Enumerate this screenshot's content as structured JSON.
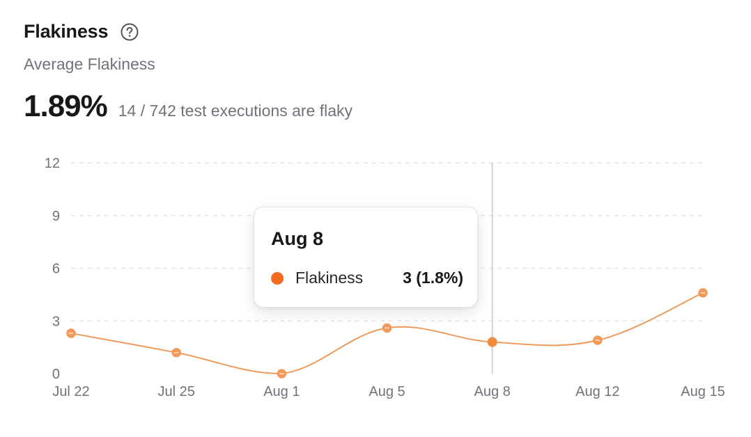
{
  "header": {
    "title": "Flakiness",
    "subtitle": "Average Flakiness",
    "metric_value": "1.89%",
    "metric_description": "14 / 742 test executions are flaky"
  },
  "icons": {
    "help": "question-circle-icon"
  },
  "colors": {
    "series": "#f28a3c",
    "series_line": "#ee9a5a",
    "tooltip_dot": "#f26b21",
    "grid": "#e4e4e7",
    "crosshair": "#d4d4d8"
  },
  "tooltip": {
    "title": "Aug 8",
    "series_label": "Flakiness",
    "value": "3 (1.8%)"
  },
  "chart_data": {
    "type": "line",
    "title": "",
    "xlabel": "",
    "ylabel": "",
    "categories": [
      "Jul 22",
      "Jul 25",
      "Aug 1",
      "Aug 5",
      "Aug 8",
      "Aug 12",
      "Aug 15"
    ],
    "series": [
      {
        "name": "Flakiness",
        "values": [
          2.3,
          1.2,
          0,
          2.6,
          1.8,
          1.9,
          4.6
        ]
      }
    ],
    "y_ticks": [
      "0",
      "3",
      "6",
      "9",
      "12"
    ],
    "ylim": [
      0,
      12
    ],
    "grid": true,
    "highlighted_category": "Aug 8"
  }
}
